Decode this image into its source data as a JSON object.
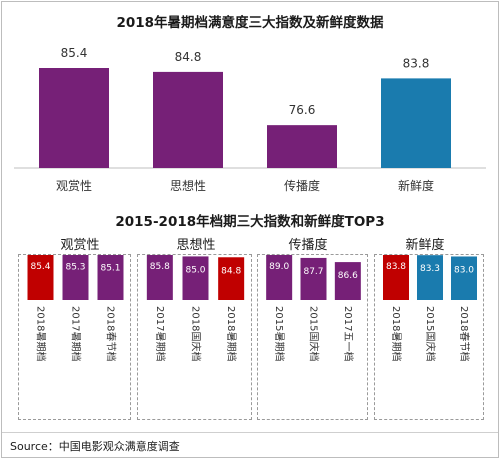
{
  "colors": {
    "purple": "#762077",
    "red": "#C00000",
    "blue": "#1A7BAE"
  },
  "chart_data": [
    {
      "type": "bar",
      "title": "2018年暑期档满意度三大指数及新鲜度数据",
      "categories": [
        "观赏性",
        "思想性",
        "传播度",
        "新鲜度"
      ],
      "values": [
        85.4,
        84.8,
        76.6,
        83.8
      ],
      "bar_colors": [
        "purple",
        "purple",
        "purple",
        "blue"
      ],
      "xlabel": "",
      "ylabel": "",
      "grid": false
    },
    {
      "type": "bar",
      "title": "2015-2018年档期三大指数和新鲜度TOP3",
      "panels": [
        {
          "name": "观赏性",
          "categories": [
            "2018暑期档",
            "2017暑期档",
            "2018春节档"
          ],
          "values": [
            85.4,
            85.3,
            85.1
          ],
          "bar_colors": [
            "red",
            "purple",
            "purple"
          ]
        },
        {
          "name": "思想性",
          "categories": [
            "2017暑期档",
            "2018国庆档",
            "2018暑期档"
          ],
          "values": [
            85.8,
            85.0,
            84.8
          ],
          "bar_colors": [
            "purple",
            "purple",
            "red"
          ]
        },
        {
          "name": "传播度",
          "categories": [
            "2015暑期档",
            "2015国庆档",
            "2017五一档"
          ],
          "values": [
            89.0,
            87.7,
            86.6
          ],
          "bar_colors": [
            "purple",
            "purple",
            "purple"
          ]
        },
        {
          "name": "新鲜度",
          "categories": [
            "2018暑期档",
            "2015国庆档",
            "2018春节档"
          ],
          "values": [
            83.8,
            83.3,
            83.0
          ],
          "bar_colors": [
            "red",
            "blue",
            "blue"
          ]
        }
      ]
    }
  ],
  "source": "Source：中国电影观众满意度调查"
}
